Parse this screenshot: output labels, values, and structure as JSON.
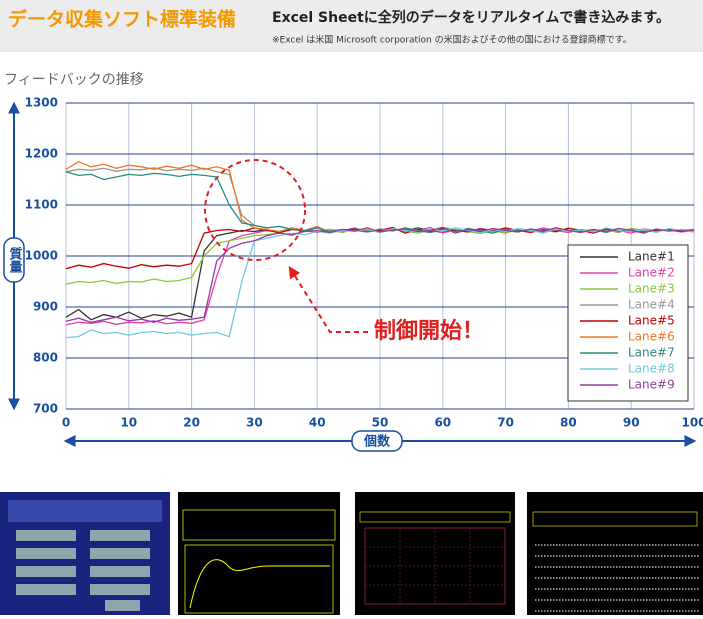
{
  "header": {
    "title": "データ収集ソフト標準装備",
    "subtitle": "Excel Sheetに全列のデータをリアルタイムで書き込みます。",
    "note": "※Excel は米国 Microsoft corporation の米国およびその他の国における登録商標です。"
  },
  "chart_data": {
    "type": "line",
    "title": "フィードバックの推移",
    "x_label": "個数",
    "y_label": "質量",
    "annotation": "制御開始！",
    "xlim": [
      0,
      100
    ],
    "xticks": [
      0,
      10,
      20,
      30,
      40,
      50,
      60,
      70,
      80,
      90,
      100
    ],
    "ylim": [
      700,
      1300
    ],
    "yticks": [
      700,
      800,
      900,
      1000,
      1100,
      1200,
      1300
    ],
    "grid": true,
    "legend": "lower right",
    "x": [
      0,
      2,
      4,
      6,
      8,
      10,
      12,
      14,
      16,
      18,
      20,
      22,
      24,
      26,
      28,
      30,
      32,
      34,
      36,
      38,
      40,
      42,
      44,
      46,
      48,
      50,
      52,
      54,
      56,
      58,
      60,
      62,
      64,
      66,
      68,
      70,
      72,
      74,
      76,
      78,
      80,
      82,
      84,
      86,
      88,
      90,
      92,
      94,
      96,
      98,
      100
    ],
    "series": [
      {
        "name": "Lane#1",
        "color": "#333333",
        "values": [
          880,
          895,
          875,
          885,
          880,
          890,
          878,
          885,
          882,
          888,
          880,
          1010,
          1040,
          1045,
          1050,
          1048,
          1052,
          1045,
          1055,
          1050,
          1048,
          1052,
          1046,
          1054,
          1050,
          1047,
          1053,
          1049,
          1055,
          1050,
          1046,
          1052,
          1048,
          1054,
          1050,
          1045,
          1053,
          1049,
          1051,
          1047,
          1055,
          1050,
          1048,
          1052,
          1046,
          1054,
          1050,
          1048,
          1052,
          1049,
          1050
        ]
      },
      {
        "name": "Lane#2",
        "color": "#e040b0",
        "values": [
          865,
          870,
          868,
          872,
          866,
          870,
          869,
          873,
          867,
          870,
          868,
          875,
          960,
          1030,
          1040,
          1045,
          1050,
          1048,
          1055,
          1050,
          1046,
          1052,
          1049,
          1055,
          1047,
          1051,
          1053,
          1048,
          1050,
          1056,
          1045,
          1052,
          1048,
          1054,
          1050,
          1047,
          1053,
          1049,
          1055,
          1050,
          1046,
          1052,
          1048,
          1054,
          1050,
          1045,
          1053,
          1049,
          1051,
          1047,
          1050
        ]
      },
      {
        "name": "Lane#3",
        "color": "#8cc63f",
        "values": [
          945,
          950,
          948,
          952,
          946,
          950,
          949,
          955,
          950,
          952,
          958,
          1000,
          1025,
          1030,
          1035,
          1040,
          1042,
          1045,
          1040,
          1050,
          1048,
          1052,
          1046,
          1054,
          1050,
          1047,
          1053,
          1049,
          1045,
          1050,
          1056,
          1052,
          1048,
          1044,
          1050,
          1045,
          1053,
          1049,
          1051,
          1047,
          1055,
          1050,
          1048,
          1052,
          1046,
          1054,
          1050,
          1048,
          1052,
          1049,
          1050
        ]
      },
      {
        "name": "Lane#4",
        "color": "#999999",
        "values": [
          1165,
          1170,
          1168,
          1172,
          1166,
          1170,
          1169,
          1173,
          1167,
          1170,
          1168,
          1172,
          1165,
          1160,
          1080,
          1060,
          1055,
          1058,
          1052,
          1050,
          1055,
          1048,
          1052,
          1050,
          1047,
          1053,
          1049,
          1055,
          1050,
          1046,
          1052,
          1048,
          1054,
          1050,
          1045,
          1053,
          1049,
          1051,
          1047,
          1055,
          1050,
          1048,
          1052,
          1046,
          1054,
          1050,
          1048,
          1052,
          1049,
          1050,
          1051
        ]
      },
      {
        "name": "Lane#5",
        "color": "#c00000",
        "values": [
          975,
          982,
          978,
          985,
          980,
          976,
          983,
          979,
          982,
          980,
          985,
          1045,
          1050,
          1052,
          1048,
          1055,
          1050,
          1046,
          1052,
          1049,
          1055,
          1047,
          1051,
          1053,
          1048,
          1050,
          1056,
          1045,
          1052,
          1048,
          1054,
          1050,
          1047,
          1053,
          1049,
          1055,
          1050,
          1046,
          1052,
          1048,
          1054,
          1050,
          1045,
          1053,
          1049,
          1051,
          1047,
          1050,
          1052,
          1048,
          1050
        ]
      },
      {
        "name": "Lane#6",
        "color": "#f07820",
        "values": [
          1170,
          1185,
          1175,
          1180,
          1172,
          1178,
          1175,
          1170,
          1176,
          1172,
          1178,
          1170,
          1175,
          1168,
          1070,
          1055,
          1052,
          1048,
          1055,
          1050,
          1058,
          1046,
          1052,
          1049,
          1055,
          1047,
          1051,
          1053,
          1048,
          1050,
          1056,
          1045,
          1052,
          1048,
          1054,
          1050,
          1047,
          1053,
          1049,
          1055,
          1050,
          1046,
          1052,
          1048,
          1054,
          1050,
          1045,
          1053,
          1049,
          1051,
          1047
        ]
      },
      {
        "name": "Lane#7",
        "color": "#2a8a80",
        "values": [
          1165,
          1158,
          1160,
          1150,
          1155,
          1160,
          1158,
          1162,
          1160,
          1156,
          1160,
          1158,
          1155,
          1100,
          1065,
          1060,
          1055,
          1058,
          1052,
          1050,
          1055,
          1048,
          1052,
          1050,
          1047,
          1053,
          1049,
          1055,
          1050,
          1046,
          1052,
          1048,
          1054,
          1050,
          1045,
          1053,
          1049,
          1051,
          1047,
          1055,
          1050,
          1048,
          1052,
          1046,
          1054,
          1050,
          1048,
          1052,
          1049,
          1050,
          1052
        ]
      },
      {
        "name": "Lane#8",
        "color": "#70c8e0",
        "values": [
          840,
          842,
          855,
          848,
          850,
          845,
          850,
          852,
          848,
          850,
          845,
          848,
          850,
          842,
          950,
          1030,
          1035,
          1040,
          1045,
          1042,
          1048,
          1045,
          1050,
          1048,
          1052,
          1046,
          1054,
          1050,
          1047,
          1053,
          1049,
          1055,
          1050,
          1046,
          1052,
          1048,
          1054,
          1050,
          1045,
          1053,
          1049,
          1051,
          1047,
          1055,
          1050,
          1048,
          1052,
          1046,
          1054,
          1050,
          1049
        ]
      },
      {
        "name": "Lane#9",
        "color": "#9040a0",
        "values": [
          872,
          878,
          870,
          875,
          880,
          873,
          876,
          870,
          878,
          874,
          876,
          880,
          990,
          1015,
          1025,
          1030,
          1040,
          1045,
          1042,
          1048,
          1050,
          1046,
          1052,
          1049,
          1055,
          1047,
          1051,
          1053,
          1048,
          1050,
          1056,
          1045,
          1052,
          1048,
          1054,
          1050,
          1047,
          1053,
          1049,
          1055,
          1050,
          1046,
          1052,
          1048,
          1054,
          1050,
          1045,
          1053,
          1049,
          1051,
          1050
        ]
      }
    ]
  }
}
